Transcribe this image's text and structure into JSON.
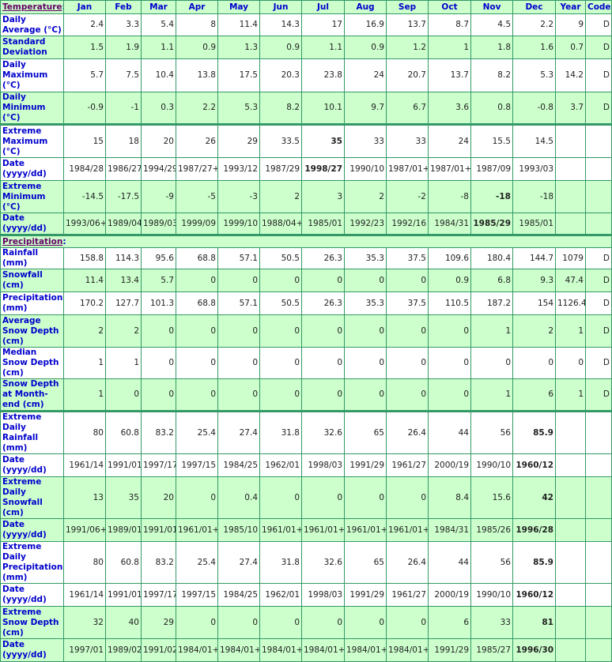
{
  "temperature_header": {
    "label": "Temperature",
    "colon": ":"
  },
  "months": [
    "Jan",
    "Feb",
    "Mar",
    "Apr",
    "May",
    "Jun",
    "Jul",
    "Aug",
    "Sep",
    "Oct",
    "Nov",
    "Dec",
    "Year",
    "Code"
  ],
  "precipitation_header": {
    "label": "Precipitation",
    "colon": ":"
  },
  "colors": {
    "border": "#339966",
    "shade": "#ccffcc",
    "label": "#0000cc",
    "section_link": "#660066"
  },
  "temperature_rows": [
    {
      "label": "Daily Average (°C)",
      "shade": "white",
      "values": [
        "2.4",
        "3.3",
        "5.4",
        "8",
        "11.4",
        "14.3",
        "17",
        "16.9",
        "13.7",
        "8.7",
        "4.5",
        "2.2",
        "9",
        "D"
      ],
      "bold": []
    },
    {
      "label": "Standard Deviation",
      "shade": "green",
      "values": [
        "1.5",
        "1.9",
        "1.1",
        "0.9",
        "1.3",
        "0.9",
        "1.1",
        "0.9",
        "1.2",
        "1",
        "1.8",
        "1.6",
        "0.7",
        "D"
      ],
      "bold": []
    },
    {
      "label": "Daily Maximum (°C)",
      "shade": "white",
      "values": [
        "5.7",
        "7.5",
        "10.4",
        "13.8",
        "17.5",
        "20.3",
        "23.8",
        "24",
        "20.7",
        "13.7",
        "8.2",
        "5.3",
        "14.2",
        "D"
      ],
      "bold": []
    },
    {
      "label": "Daily Minimum (°C)",
      "shade": "green",
      "values": [
        "-0.9",
        "-1",
        "0.3",
        "2.2",
        "5.3",
        "8.2",
        "10.1",
        "9.7",
        "6.7",
        "3.6",
        "0.8",
        "-0.8",
        "3.7",
        "D"
      ],
      "bold": []
    },
    {
      "label": "Extreme Maximum (°C)",
      "shade": "white",
      "values": [
        "15",
        "18",
        "20",
        "26",
        "29",
        "33.5",
        "35",
        "33",
        "33",
        "24",
        "15.5",
        "14.5",
        "",
        ""
      ],
      "bold": [
        6
      ]
    },
    {
      "label": "Date (yyyy/dd)",
      "shade": "white",
      "values": [
        "1984/28",
        "1986/27",
        "1994/29",
        "1987/27+",
        "1993/12",
        "1987/29",
        "1998/27",
        "1990/10",
        "1987/01+",
        "1987/01+",
        "1987/09",
        "1993/03",
        "",
        ""
      ],
      "bold": [
        6
      ]
    },
    {
      "label": "Extreme Minimum (°C)",
      "shade": "green",
      "values": [
        "-14.5",
        "-17.5",
        "-9",
        "-5",
        "-3",
        "2",
        "3",
        "2",
        "-2",
        "-8",
        "-18",
        "-18",
        "",
        ""
      ],
      "bold": [
        10
      ]
    },
    {
      "label": "Date (yyyy/dd)",
      "shade": "green",
      "values": [
        "1993/06+",
        "1989/04",
        "1989/03",
        "1999/09",
        "1999/10",
        "1988/04+",
        "1985/01",
        "1992/23",
        "1992/16",
        "1984/31",
        "1985/29",
        "1985/01",
        "",
        ""
      ],
      "bold": [
        10
      ]
    }
  ],
  "precipitation_rows": [
    {
      "label": "Rainfall (mm)",
      "shade": "white",
      "values": [
        "158.8",
        "114.3",
        "95.6",
        "68.8",
        "57.1",
        "50.5",
        "26.3",
        "35.3",
        "37.5",
        "109.6",
        "180.4",
        "144.7",
        "1079",
        "D"
      ],
      "bold": []
    },
    {
      "label": "Snowfall (cm)",
      "shade": "green",
      "values": [
        "11.4",
        "13.4",
        "5.7",
        "0",
        "0",
        "0",
        "0",
        "0",
        "0",
        "0.9",
        "6.8",
        "9.3",
        "47.4",
        "D"
      ],
      "bold": []
    },
    {
      "label": "Precipitation (mm)",
      "shade": "white",
      "values": [
        "170.2",
        "127.7",
        "101.3",
        "68.8",
        "57.1",
        "50.5",
        "26.3",
        "35.3",
        "37.5",
        "110.5",
        "187.2",
        "154",
        "1126.4",
        "D"
      ],
      "bold": []
    },
    {
      "label": "Average Snow Depth (cm)",
      "shade": "green",
      "values": [
        "2",
        "2",
        "0",
        "0",
        "0",
        "0",
        "0",
        "0",
        "0",
        "0",
        "1",
        "2",
        "1",
        "D"
      ],
      "bold": []
    },
    {
      "label": "Median Snow Depth (cm)",
      "shade": "white",
      "values": [
        "1",
        "1",
        "0",
        "0",
        "0",
        "0",
        "0",
        "0",
        "0",
        "0",
        "0",
        "0",
        "0",
        "D"
      ],
      "bold": []
    },
    {
      "label": "Snow Depth at Month-end (cm)",
      "shade": "green",
      "values": [
        "1",
        "0",
        "0",
        "0",
        "0",
        "0",
        "0",
        "0",
        "0",
        "0",
        "1",
        "6",
        "1",
        "D"
      ],
      "bold": []
    },
    {
      "label": "Extreme Daily Rainfall (mm)",
      "shade": "white",
      "values": [
        "80",
        "60.8",
        "83.2",
        "25.4",
        "27.4",
        "31.8",
        "32.6",
        "65",
        "26.4",
        "44",
        "56",
        "85.9",
        "",
        ""
      ],
      "bold": [
        11
      ]
    },
    {
      "label": "Date (yyyy/dd)",
      "shade": "white",
      "values": [
        "1961/14",
        "1991/01",
        "1997/17",
        "1997/15",
        "1984/25",
        "1962/01",
        "1998/03",
        "1991/29",
        "1961/27",
        "2000/19",
        "1990/10",
        "1960/12",
        "",
        ""
      ],
      "bold": [
        11
      ]
    },
    {
      "label": "Extreme Daily Snowfall (cm)",
      "shade": "green",
      "values": [
        "13",
        "35",
        "20",
        "0",
        "0.4",
        "0",
        "0",
        "0",
        "0",
        "8.4",
        "15.6",
        "42",
        "",
        ""
      ],
      "bold": [
        11
      ]
    },
    {
      "label": "Date (yyyy/dd)",
      "shade": "green",
      "values": [
        "1991/06+",
        "1989/01",
        "1991/01",
        "1961/01+",
        "1985/10",
        "1961/01+",
        "1961/01+",
        "1961/01+",
        "1961/01+",
        "1984/31",
        "1985/26",
        "1996/28",
        "",
        ""
      ],
      "bold": [
        11
      ]
    },
    {
      "label": "Extreme Daily Precipitation (mm)",
      "shade": "white",
      "values": [
        "80",
        "60.8",
        "83.2",
        "25.4",
        "27.4",
        "31.8",
        "32.6",
        "65",
        "26.4",
        "44",
        "56",
        "85.9",
        "",
        ""
      ],
      "bold": [
        11
      ]
    },
    {
      "label": "Date (yyyy/dd)",
      "shade": "white",
      "values": [
        "1961/14",
        "1991/01",
        "1997/17",
        "1997/15",
        "1984/25",
        "1962/01",
        "1998/03",
        "1991/29",
        "1961/27",
        "2000/19",
        "1990/10",
        "1960/12",
        "",
        ""
      ],
      "bold": [
        11
      ]
    },
    {
      "label": "Extreme Snow Depth (cm)",
      "shade": "green",
      "values": [
        "32",
        "40",
        "29",
        "0",
        "0",
        "0",
        "0",
        "0",
        "0",
        "6",
        "33",
        "81",
        "",
        ""
      ],
      "bold": [
        11
      ]
    },
    {
      "label": "Date (yyyy/dd)",
      "shade": "green",
      "values": [
        "1997/01",
        "1989/02",
        "1991/02",
        "1984/01+",
        "1984/01+",
        "1984/01+",
        "1984/01+",
        "1984/01+",
        "1984/01+",
        "1991/29",
        "1985/27",
        "1996/30",
        "",
        ""
      ],
      "bold": [
        11
      ]
    }
  ]
}
